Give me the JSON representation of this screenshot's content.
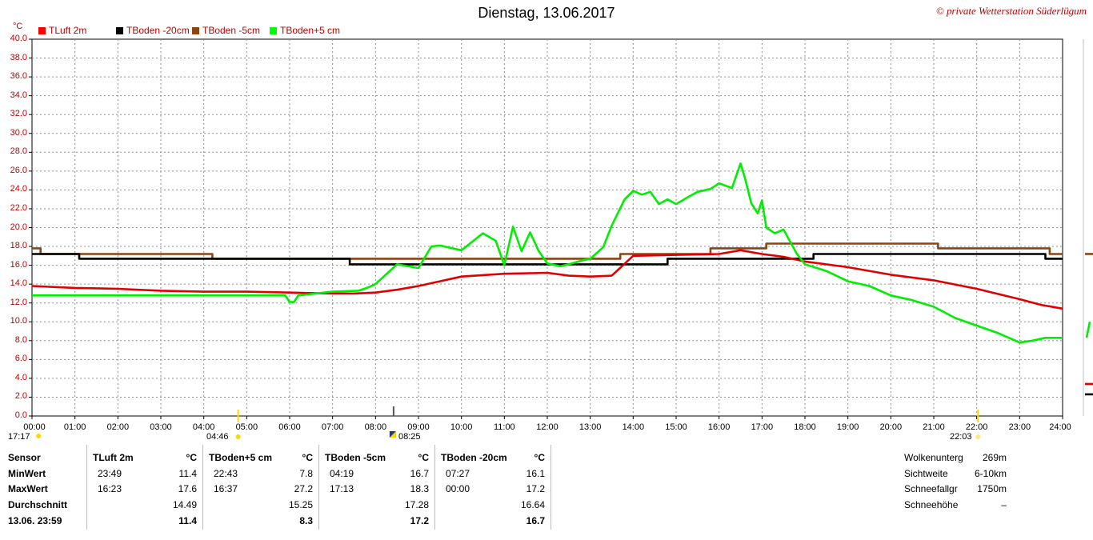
{
  "title": "Dienstag, 13.06.2017",
  "copyright": "© private Wetterstation Süderlügum",
  "unit": "°C",
  "legend": [
    {
      "label": "TLuft 2m",
      "color": "#ff0000"
    },
    {
      "label": "TBoden -20cm",
      "color": "#000000"
    },
    {
      "label": "TBoden -5cm",
      "color": "#8b4513"
    },
    {
      "label": "TBoden+5 cm",
      "color": "#00ff00"
    }
  ],
  "sun_markers": {
    "left_time": "17:17",
    "sunrise": "04:46",
    "moon": "08:25",
    "sunset": "22:03"
  },
  "chart_data": {
    "type": "line",
    "title": "Dienstag, 13.06.2017",
    "ylabel": "°C",
    "xlabel": "",
    "ylim": [
      0,
      40
    ],
    "yticks": [
      "0.0",
      "2.0",
      "4.0",
      "6.0",
      "8.0",
      "10.0",
      "12.0",
      "14.0",
      "16.0",
      "18.0",
      "20.0",
      "22.0",
      "24.0",
      "26.0",
      "28.0",
      "30.0",
      "32.0",
      "34.0",
      "36.0",
      "38.0",
      "40.0"
    ],
    "xlim": [
      0,
      24
    ],
    "xticks": [
      "00:00",
      "01:00",
      "02:00",
      "03:00",
      "04:00",
      "05:00",
      "06:00",
      "07:00",
      "08:00",
      "09:00",
      "10:00",
      "11:00",
      "12:00",
      "13:00",
      "14:00",
      "15:00",
      "16:00",
      "17:00",
      "18:00",
      "19:00",
      "20:00",
      "21:00",
      "22:00",
      "23:00",
      "24:00"
    ],
    "grid": true,
    "legend_position": "top-left",
    "series": [
      {
        "name": "TLuft 2m",
        "color": "#e00000",
        "x": [
          0,
          1,
          2,
          3,
          4,
          5,
          6,
          7,
          7.5,
          8,
          8.5,
          9,
          9.5,
          10,
          11,
          12,
          12.5,
          13,
          13.5,
          14,
          15,
          16,
          16.5,
          17,
          17.5,
          18,
          19,
          20,
          21,
          22,
          23,
          23.5,
          24
        ],
        "y": [
          13.8,
          13.6,
          13.5,
          13.3,
          13.2,
          13.2,
          13.1,
          13.0,
          13.0,
          13.1,
          13.4,
          13.8,
          14.3,
          14.8,
          15.1,
          15.2,
          14.9,
          14.8,
          14.9,
          17.0,
          17.1,
          17.2,
          17.6,
          17.2,
          16.9,
          16.4,
          15.8,
          15.0,
          14.4,
          13.5,
          12.4,
          11.8,
          11.4
        ]
      },
      {
        "name": "TBoden -20cm",
        "color": "#000000",
        "x": [
          0,
          1.1,
          1.1,
          7.4,
          7.4,
          14.8,
          14.8,
          18.2,
          18.2,
          23.6,
          23.6,
          24
        ],
        "y": [
          17.2,
          17.2,
          16.7,
          16.7,
          16.1,
          16.1,
          16.7,
          16.7,
          17.2,
          17.2,
          16.7,
          16.7
        ]
      },
      {
        "name": "TBoden -5cm",
        "color": "#8b4513",
        "x": [
          0,
          0.2,
          0.2,
          4.2,
          4.2,
          13.7,
          13.7,
          15.8,
          15.8,
          17.1,
          17.1,
          21.1,
          21.1,
          23.7,
          23.7,
          24
        ],
        "y": [
          17.8,
          17.8,
          17.2,
          17.2,
          16.7,
          16.7,
          17.2,
          17.2,
          17.8,
          17.8,
          18.3,
          18.3,
          17.8,
          17.8,
          17.2,
          17.2
        ],
        "end_value": 17.2
      },
      {
        "name": "TBoden+5 cm",
        "color": "#00ee00",
        "x": [
          0,
          5.9,
          6.0,
          6.1,
          6.2,
          7.0,
          7.6,
          7.8,
          8.0,
          8.5,
          9.0,
          9.3,
          9.5,
          10.0,
          10.5,
          10.8,
          11.0,
          11.2,
          11.4,
          11.6,
          11.8,
          12.0,
          12.3,
          12.5,
          12.8,
          13.0,
          13.3,
          13.5,
          13.8,
          14.0,
          14.2,
          14.4,
          14.6,
          14.8,
          15.0,
          15.3,
          15.5,
          15.8,
          16.0,
          16.3,
          16.5,
          16.6,
          16.75,
          16.9,
          17.0,
          17.1,
          17.3,
          17.5,
          17.8,
          18.0,
          18.5,
          19.0,
          19.5,
          20.0,
          20.5,
          21.0,
          21.5,
          22.0,
          22.5,
          22.8,
          23.0,
          23.3,
          23.6,
          24.0
        ],
        "y": [
          12.8,
          12.8,
          12.1,
          12.1,
          12.8,
          13.2,
          13.3,
          13.6,
          14.0,
          16.1,
          15.7,
          18.0,
          18.1,
          17.6,
          19.4,
          18.6,
          16.0,
          20.1,
          17.5,
          19.5,
          17.5,
          16.2,
          15.9,
          16.1,
          16.5,
          16.7,
          17.9,
          20.2,
          23.0,
          23.9,
          23.5,
          23.8,
          22.5,
          23.0,
          22.5,
          23.3,
          23.8,
          24.1,
          24.7,
          24.2,
          26.8,
          25.3,
          22.6,
          21.5,
          22.9,
          20.0,
          19.4,
          19.8,
          17.3,
          16.1,
          15.4,
          14.3,
          13.8,
          12.8,
          12.3,
          11.6,
          10.4,
          9.6,
          8.8,
          8.2,
          7.8,
          8.0,
          8.3,
          8.3
        ]
      }
    ]
  },
  "table": {
    "header": "Sensor",
    "row_labels": [
      "MinWert",
      "MaxWert",
      "Durchschnitt",
      "13.06. 23:59"
    ],
    "columns": [
      {
        "title": "TLuft 2m",
        "unit": "°C",
        "min_time": "23:49",
        "min": "11.4",
        "max_time": "16:23",
        "max": "17.6",
        "avg": "14.49",
        "current": "11.4"
      },
      {
        "title": "TBoden+5 cm",
        "unit": "°C",
        "min_time": "22:43",
        "min": "7.8",
        "max_time": "16:37",
        "max": "27.2",
        "avg": "15.25",
        "current": "8.3"
      },
      {
        "title": "TBoden -5cm",
        "unit": "°C",
        "min_time": "04:19",
        "min": "16.7",
        "max_time": "17:13",
        "max": "18.3",
        "avg": "17.28",
        "current": "17.2"
      },
      {
        "title": "TBoden -20cm",
        "unit": "°C",
        "min_time": "07:27",
        "min": "16.1",
        "max_time": "00:00",
        "max": "17.2",
        "avg": "16.64",
        "current": "16.7"
      }
    ]
  },
  "info": [
    {
      "label": "Wolkenunterg",
      "value": "269m"
    },
    {
      "label": "Sichtweite",
      "value": "6-10km"
    },
    {
      "label": "Schneefallgr",
      "value": "1750m"
    },
    {
      "label": "Schneehöhe",
      "value": "–"
    }
  ]
}
